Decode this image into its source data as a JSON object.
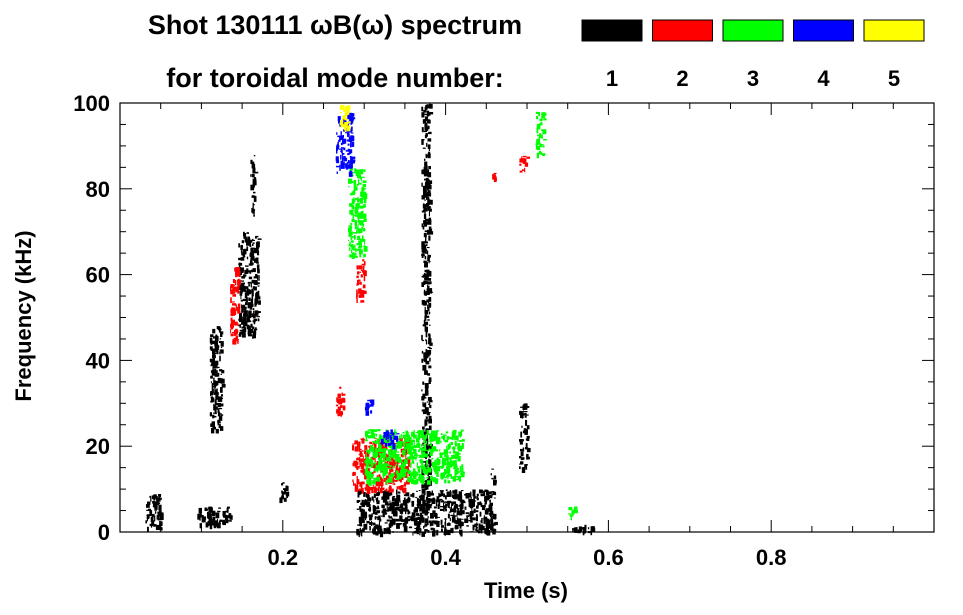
{
  "header": {
    "title_line1": "Shot 130111 ωB(ω) spectrum",
    "title_line2": "for toroidal mode number:"
  },
  "legend": [
    {
      "label": "1",
      "color": "#000000"
    },
    {
      "label": "2",
      "color": "#ff0000"
    },
    {
      "label": "3",
      "color": "#00ff00"
    },
    {
      "label": "4",
      "color": "#0000ff"
    },
    {
      "label": "5",
      "color": "#ffff00"
    }
  ],
  "chart_data": {
    "type": "heatmap",
    "title": "Shot 130111 ωB(ω) spectrum",
    "xlabel": "Time (s)",
    "ylabel": "Frequency (kHz)",
    "xlim": [
      0.0,
      1.0
    ],
    "ylim": [
      0,
      100
    ],
    "xticks": [
      0.2,
      0.4,
      0.6,
      0.8
    ],
    "xtick_labels": [
      "0.2",
      "0.4",
      "0.6",
      "0.8"
    ],
    "yticks": [
      0,
      20,
      40,
      60,
      80,
      100
    ],
    "ytick_labels": [
      "0",
      "20",
      "40",
      "60",
      "80",
      "100"
    ],
    "legend_position": "top",
    "series": [
      {
        "name": "1",
        "color": "#000000",
        "regions": [
          {
            "t": [
              0.03,
              0.05
            ],
            "f": [
              1,
              9
            ]
          },
          {
            "t": [
              0.095,
              0.135
            ],
            "f": [
              2,
              6
            ]
          },
          {
            "t": [
              0.11,
              0.125
            ],
            "f": [
              24,
              48
            ]
          },
          {
            "t": [
              0.145,
              0.17
            ],
            "f": [
              46,
              70
            ]
          },
          {
            "t": [
              0.16,
              0.165
            ],
            "f": [
              74,
              88
            ]
          },
          {
            "t": [
              0.195,
              0.205
            ],
            "f": [
              8,
              12
            ]
          },
          {
            "t": [
              0.29,
              0.46
            ],
            "f": [
              0,
              10
            ]
          },
          {
            "t": [
              0.37,
              0.38
            ],
            "f": [
              10,
              100
            ]
          },
          {
            "t": [
              0.455,
              0.46
            ],
            "f": [
              12,
              15
            ]
          },
          {
            "t": [
              0.49,
              0.5
            ],
            "f": [
              15,
              30
            ]
          },
          {
            "t": [
              0.555,
              0.585
            ],
            "f": [
              0,
              2
            ]
          }
        ]
      },
      {
        "name": "2",
        "color": "#ff0000",
        "regions": [
          {
            "t": [
              0.135,
              0.145
            ],
            "f": [
              44,
              62
            ]
          },
          {
            "t": [
              0.265,
              0.275
            ],
            "f": [
              28,
              34
            ]
          },
          {
            "t": [
              0.285,
              0.355
            ],
            "f": [
              10,
              22
            ]
          },
          {
            "t": [
              0.29,
              0.3
            ],
            "f": [
              54,
              64
            ]
          },
          {
            "t": [
              0.455,
              0.46
            ],
            "f": [
              82,
              84
            ]
          },
          {
            "t": [
              0.49,
              0.5
            ],
            "f": [
              84,
              88
            ]
          }
        ]
      },
      {
        "name": "3",
        "color": "#00ff00",
        "regions": [
          {
            "t": [
              0.28,
              0.3
            ],
            "f": [
              64,
              85
            ]
          },
          {
            "t": [
              0.3,
              0.42
            ],
            "f": [
              12,
              24
            ]
          },
          {
            "t": [
              0.51,
              0.52
            ],
            "f": [
              88,
              98
            ]
          },
          {
            "t": [
              0.55,
              0.56
            ],
            "f": [
              4,
              6
            ]
          }
        ]
      },
      {
        "name": "4",
        "color": "#0000ff",
        "regions": [
          {
            "t": [
              0.265,
              0.285
            ],
            "f": [
              84,
              98
            ]
          },
          {
            "t": [
              0.3,
              0.31
            ],
            "f": [
              28,
              31
            ]
          },
          {
            "t": [
              0.32,
              0.34
            ],
            "f": [
              20,
              24
            ]
          }
        ]
      },
      {
        "name": "5",
        "color": "#ffff00",
        "regions": [
          {
            "t": [
              0.27,
              0.28
            ],
            "f": [
              94,
              100
            ]
          }
        ]
      }
    ]
  }
}
